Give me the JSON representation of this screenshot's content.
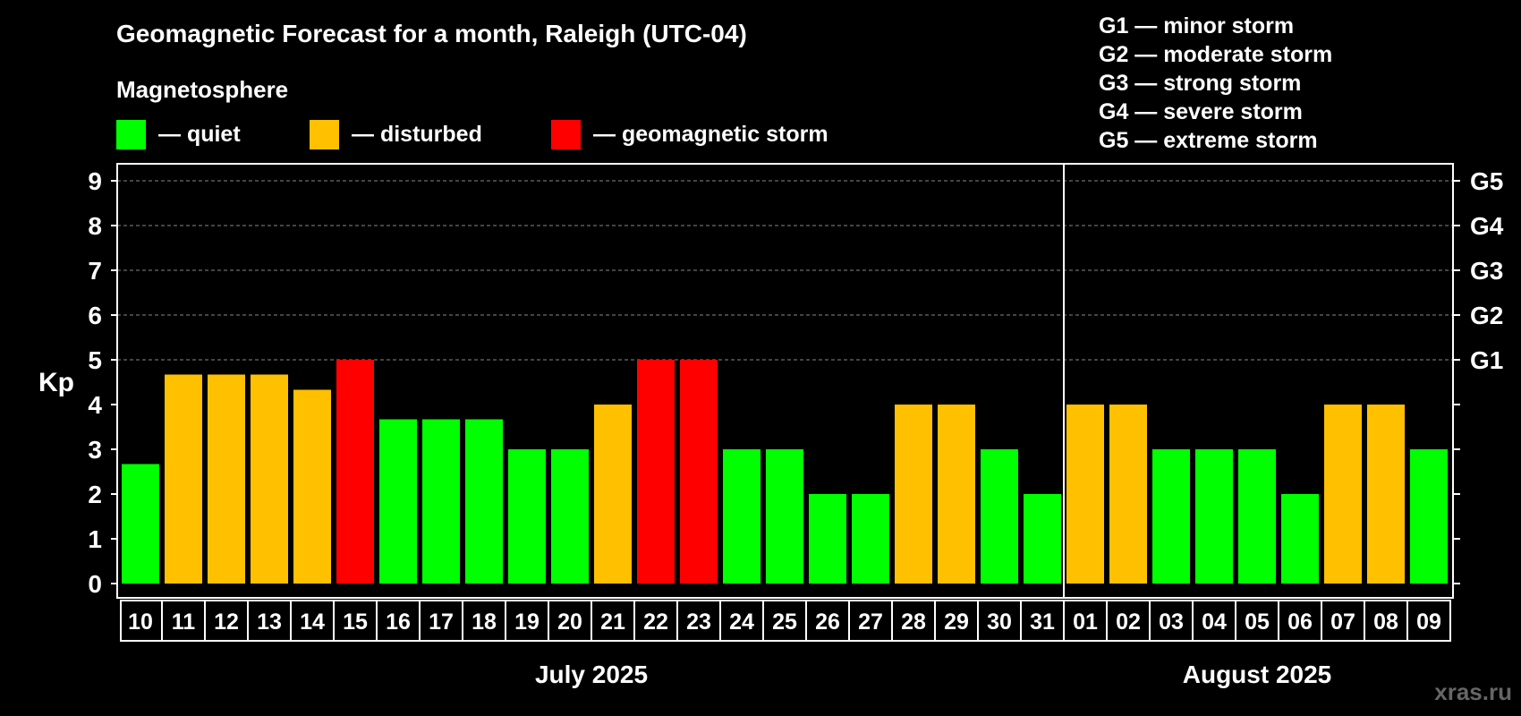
{
  "title": "Geomagnetic Forecast for a month, Raleigh (UTC-04)",
  "legend": {
    "heading": "Magnetosphere",
    "items": [
      {
        "label": "— quiet",
        "color": "#00ff00"
      },
      {
        "label": "— disturbed",
        "color": "#ffc000"
      },
      {
        "label": "— geomagnetic storm",
        "color": "#ff0000"
      }
    ]
  },
  "storm_scale": [
    "G1 — minor storm",
    "G2 — moderate storm",
    "G3 — strong storm",
    "G4 — severe storm",
    "G5 — extreme storm"
  ],
  "watermark": "xras.ru",
  "chart_data": {
    "type": "bar",
    "ylabel": "Kp",
    "ylim": [
      0,
      9
    ],
    "yticks": [
      0,
      1,
      2,
      3,
      4,
      5,
      6,
      7,
      8,
      9
    ],
    "right_axis_labels": [
      {
        "value": 5,
        "label": "G1"
      },
      {
        "value": 6,
        "label": "G2"
      },
      {
        "value": 7,
        "label": "G3"
      },
      {
        "value": 8,
        "label": "G4"
      },
      {
        "value": 9,
        "label": "G5"
      }
    ],
    "grid": "dashed horizontal at Kp 5-9",
    "categories": [
      "10",
      "11",
      "12",
      "13",
      "14",
      "15",
      "16",
      "17",
      "18",
      "19",
      "20",
      "21",
      "22",
      "23",
      "24",
      "25",
      "26",
      "27",
      "28",
      "29",
      "30",
      "31",
      "01",
      "02",
      "03",
      "04",
      "05",
      "06",
      "07",
      "08",
      "09"
    ],
    "values": [
      2.67,
      4.67,
      4.67,
      4.67,
      4.33,
      5,
      3.67,
      3.67,
      3.67,
      3,
      3,
      4,
      5,
      5,
      3,
      3,
      2,
      2,
      4,
      4,
      3,
      2,
      4,
      4,
      3,
      3,
      3,
      2,
      4,
      4,
      3
    ],
    "levels": [
      "quiet",
      "disturbed",
      "disturbed",
      "disturbed",
      "disturbed",
      "storm",
      "quiet",
      "quiet",
      "quiet",
      "quiet",
      "quiet",
      "disturbed",
      "storm",
      "storm",
      "quiet",
      "quiet",
      "quiet",
      "quiet",
      "disturbed",
      "disturbed",
      "quiet",
      "quiet",
      "disturbed",
      "disturbed",
      "quiet",
      "quiet",
      "quiet",
      "quiet",
      "disturbed",
      "disturbed",
      "quiet"
    ],
    "level_colors": {
      "quiet": "#00ff00",
      "disturbed": "#ffc000",
      "storm": "#ff0000"
    },
    "months": [
      {
        "label": "July 2025",
        "first_index": 0,
        "last_index": 21
      },
      {
        "label": "August 2025",
        "first_index": 22,
        "last_index": 30
      }
    ],
    "month_separator_after_index": 21
  }
}
